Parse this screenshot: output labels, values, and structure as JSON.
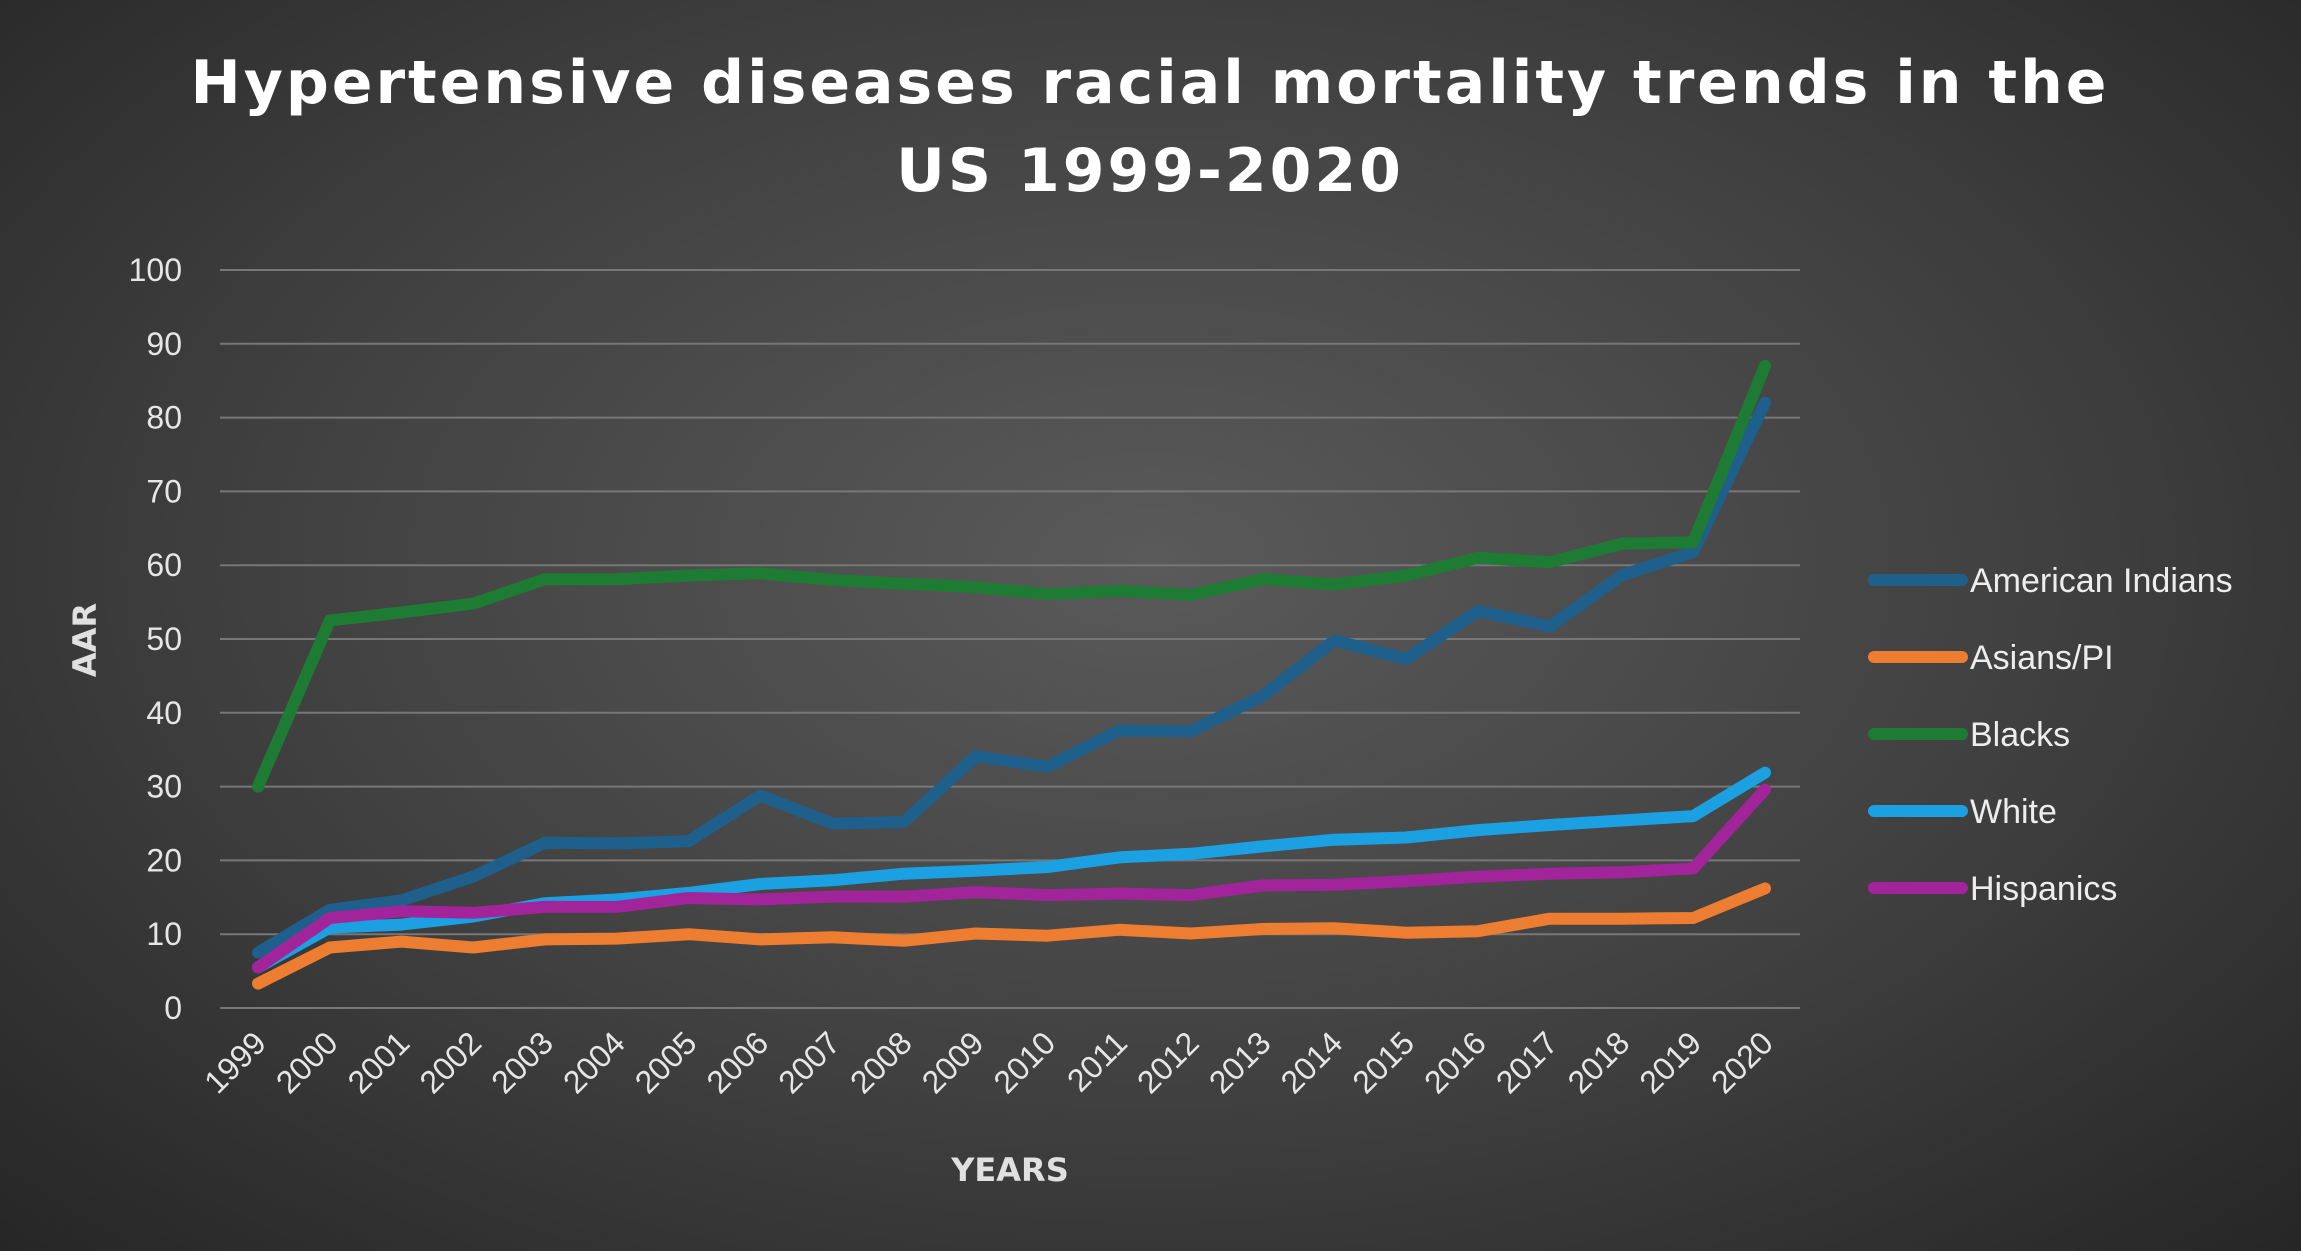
{
  "chart_data": {
    "type": "line",
    "title_lines": [
      "Hypertensive diseases racial mortality trends in the",
      "US 1999-2020"
    ],
    "xlabel": "YEARS",
    "ylabel": "AAR",
    "ylim": [
      0,
      100
    ],
    "yticks": [
      "0",
      "10",
      "20",
      "30",
      "40",
      "50",
      "60",
      "70",
      "80",
      "90",
      "100"
    ],
    "categories": [
      "1999",
      "2000",
      "2001",
      "2002",
      "2003",
      "2004",
      "2005",
      "2006",
      "2007",
      "2008",
      "2009",
      "2010",
      "2011",
      "2012",
      "2013",
      "2014",
      "2015",
      "2016",
      "2017",
      "2018",
      "2019",
      "2020"
    ],
    "grid": true,
    "legend_position": "right",
    "series": [
      {
        "name": "American Indians",
        "color": "#1f5f8b",
        "values": [
          7.5,
          13.3,
          14.6,
          17.8,
          22.4,
          22.3,
          22.6,
          28.8,
          25.0,
          25.2,
          34.1,
          32.7,
          37.6,
          37.5,
          42.3,
          49.8,
          47.3,
          53.8,
          51.7,
          58.6,
          61.8,
          82.0
        ]
      },
      {
        "name": "Asians/PI",
        "color": "#ed7d31",
        "values": [
          3.3,
          8.2,
          9.0,
          8.2,
          9.3,
          9.4,
          10.0,
          9.3,
          9.6,
          9.1,
          10.1,
          9.8,
          10.6,
          10.1,
          10.7,
          10.8,
          10.2,
          10.4,
          12.1,
          12.1,
          12.2,
          16.2
        ]
      },
      {
        "name": "Blacks",
        "color": "#1e7b33",
        "values": [
          30.0,
          52.5,
          53.6,
          54.8,
          58.1,
          58.1,
          58.6,
          58.9,
          58.0,
          57.5,
          57.0,
          56.1,
          56.5,
          56.0,
          58.1,
          57.4,
          58.6,
          61.0,
          60.4,
          62.9,
          63.1,
          87.0
        ]
      },
      {
        "name": "White",
        "color": "#1ba1e2",
        "values": [
          5.5,
          10.9,
          11.3,
          12.4,
          14.2,
          14.7,
          15.6,
          16.8,
          17.3,
          18.2,
          18.6,
          19.1,
          20.4,
          20.9,
          21.9,
          22.8,
          23.1,
          24.1,
          24.8,
          25.4,
          26.0,
          31.9
        ]
      },
      {
        "name": "Hispanics",
        "color": "#a1249a",
        "values": [
          5.5,
          12.2,
          13.1,
          12.9,
          13.7,
          13.7,
          14.9,
          14.7,
          15.1,
          15.1,
          15.7,
          15.3,
          15.5,
          15.3,
          16.6,
          16.7,
          17.2,
          17.8,
          18.2,
          18.4,
          18.9,
          29.6
        ]
      }
    ]
  }
}
